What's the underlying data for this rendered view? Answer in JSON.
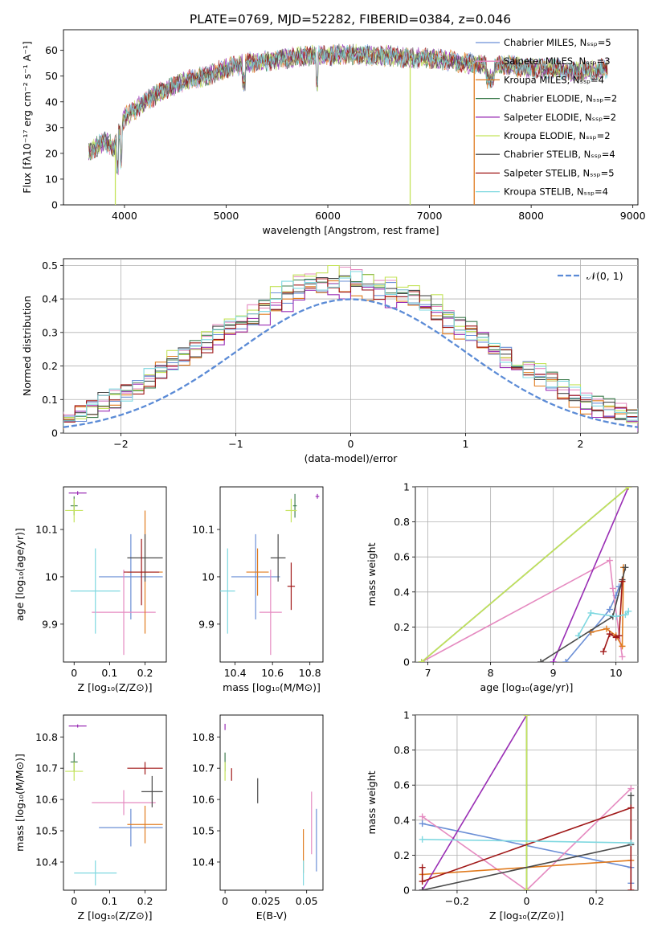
{
  "title": "PLATE=0769, MJD=52282, FIBERID=0384, z=0.046",
  "colors": [
    "#6b8fd6",
    "#e58ac0",
    "#e07b1f",
    "#3f7d4f",
    "#9a2fb5",
    "#c4e35a",
    "#4a4a4a",
    "#a01818",
    "#7fd8e0"
  ],
  "chart_data": [
    {
      "id": "spectrum",
      "type": "line",
      "xlabel": "wavelength [Angstrom, rest frame]",
      "ylabel": "Flux [fλ10⁻¹⁷ erg cm⁻² s⁻¹ A⁻¹]",
      "xlim": [
        3400,
        9050
      ],
      "ylim": [
        0,
        68
      ],
      "xticks": [
        4000,
        5000,
        6000,
        7000,
        8000,
        9000
      ],
      "yticks": [
        0,
        10,
        20,
        30,
        40,
        50,
        60
      ],
      "grid": false,
      "legend_position": "right",
      "series": [
        {
          "name": "Chabrier MILES, Nₛₛₚ=5"
        },
        {
          "name": "Salpeter MILES, Nₛₛₚ=3"
        },
        {
          "name": "Kroupa MILES, Nₛₛₚ=4"
        },
        {
          "name": "Chabrier ELODIE, Nₛₛₚ=2"
        },
        {
          "name": "Salpeter ELODIE, Nₛₛₚ=2"
        },
        {
          "name": "Kroupa ELODIE, Nₛₛₚ=2"
        },
        {
          "name": "Chabrier STELIB, Nₛₛₚ=4"
        },
        {
          "name": "Salpeter STELIB, Nₛₛₚ=5"
        },
        {
          "name": "Kroupa STELIB, Nₛₛₚ=4"
        }
      ],
      "continuum": {
        "x": [
          3650,
          3700,
          3800,
          3900,
          3950,
          4000,
          4100,
          4200,
          4400,
          4600,
          4800,
          5000,
          5200,
          5400,
          5600,
          5800,
          6000,
          6200,
          6400,
          6600,
          6800,
          7000,
          7200,
          7400,
          7600,
          7800,
          8000,
          8200,
          8400,
          8600,
          8750
        ],
        "y": [
          20,
          22,
          25,
          22,
          28,
          34,
          37,
          40,
          45,
          48,
          50,
          53,
          55,
          56,
          57,
          58,
          58,
          58.5,
          58,
          58,
          57,
          57,
          56,
          55,
          54,
          54,
          53,
          53,
          52,
          52,
          53
        ]
      },
      "dropouts": [
        {
          "x": 3910,
          "series": 5
        },
        {
          "x": 6810,
          "series": 5
        },
        {
          "x": 7440,
          "series": 2
        }
      ]
    },
    {
      "id": "residuals",
      "type": "histogram",
      "xlabel": "(data-model)/error",
      "ylabel": "Normed distribution",
      "xlim": [
        -2.5,
        2.5
      ],
      "ylim": [
        0,
        0.52
      ],
      "xticks": [
        -2,
        -1,
        0,
        1,
        2
      ],
      "yticks": [
        0.0,
        0.1,
        0.2,
        0.3,
        0.4,
        0.5
      ],
      "grid": true,
      "legend": [
        {
          "name": "𝒩(0, 1)",
          "style": "dashed"
        }
      ],
      "legend_position": "top-right",
      "bin_width": 0.1,
      "base": [
        0.02,
        0.025,
        0.03,
        0.035,
        0.04,
        0.05,
        0.06,
        0.07,
        0.09,
        0.1,
        0.12,
        0.14,
        0.16,
        0.19,
        0.21,
        0.23,
        0.25,
        0.27,
        0.29,
        0.31,
        0.33,
        0.35,
        0.37,
        0.39,
        0.41,
        0.42,
        0.43,
        0.44,
        0.45,
        0.45,
        0.44,
        0.44,
        0.43,
        0.42,
        0.41,
        0.4,
        0.38,
        0.36,
        0.34,
        0.32,
        0.3,
        0.28,
        0.26,
        0.23,
        0.21,
        0.19,
        0.17,
        0.15,
        0.13,
        0.11,
        0.09,
        0.08,
        0.07,
        0.06,
        0.05,
        0.04,
        0.035,
        0.03,
        0.025,
        0.02
      ]
    },
    {
      "id": "age-vs-Z",
      "type": "errorbar",
      "xlabel": "Z [log₁₀(Z/Z⊙)]",
      "ylabel": "age  [log₁₀(age/yr)]",
      "xlim": [
        -0.03,
        0.26
      ],
      "ylim": [
        9.82,
        10.19
      ],
      "xticks": [
        0.0,
        0.1,
        0.2
      ],
      "yticks": [
        9.9,
        10.0,
        10.1
      ],
      "grid": false,
      "points": [
        {
          "x": 0.16,
          "y": 10.0,
          "xerr": 0.09,
          "yerr": 0.09,
          "c": 0
        },
        {
          "x": 0.14,
          "y": 9.925,
          "xerr": 0.09,
          "yerr": 0.09,
          "c": 1
        },
        {
          "x": 0.2,
          "y": 10.01,
          "xerr": 0.05,
          "yerr": 0.13,
          "c": 2
        },
        {
          "x": 0.0,
          "y": 10.15,
          "xerr": 0.01,
          "yerr": 0.02,
          "c": 3
        },
        {
          "x": 0.01,
          "y": 10.177,
          "xerr": 0.025,
          "yerr": 0.004,
          "c": 4
        },
        {
          "x": 0.0,
          "y": 10.14,
          "xerr": 0.025,
          "yerr": 0.025,
          "c": 5
        },
        {
          "x": 0.2,
          "y": 10.04,
          "xerr": 0.05,
          "yerr": 0.05,
          "c": 6
        },
        {
          "x": 0.19,
          "y": 10.01,
          "xerr": 0.05,
          "yerr": 0.07,
          "c": 7
        },
        {
          "x": 0.06,
          "y": 9.97,
          "xerr": 0.07,
          "yerr": 0.09,
          "c": 8
        }
      ]
    },
    {
      "id": "age-vs-mass",
      "type": "errorbar",
      "xlabel": "mass [log₁₀(M/M⊙)]",
      "ylabel": "",
      "xlim": [
        10.32,
        10.87
      ],
      "ylim": [
        9.82,
        10.19
      ],
      "xticks": [
        10.4,
        10.6,
        10.8
      ],
      "yticks": [
        9.9,
        10.0,
        10.1
      ],
      "grid": false,
      "points": [
        {
          "x": 10.51,
          "y": 10.0,
          "xerr": 0.13,
          "yerr": 0.09,
          "c": 0
        },
        {
          "x": 10.59,
          "y": 9.925,
          "xerr": 0.06,
          "yerr": 0.09,
          "c": 1
        },
        {
          "x": 10.52,
          "y": 10.01,
          "xerr": 0.06,
          "yerr": 0.05,
          "c": 2
        },
        {
          "x": 10.72,
          "y": 10.15,
          "xerr": 0.01,
          "yerr": 0.025,
          "c": 3
        },
        {
          "x": 10.84,
          "y": 10.17,
          "xerr": 0.01,
          "yerr": 0.005,
          "c": 4
        },
        {
          "x": 10.7,
          "y": 10.14,
          "xerr": 0.03,
          "yerr": 0.025,
          "c": 5
        },
        {
          "x": 10.63,
          "y": 10.04,
          "xerr": 0.04,
          "yerr": 0.05,
          "c": 6
        },
        {
          "x": 10.7,
          "y": 9.98,
          "xerr": 0.02,
          "yerr": 0.05,
          "c": 7
        },
        {
          "x": 10.36,
          "y": 9.97,
          "xerr": 0.04,
          "yerr": 0.09,
          "c": 8
        }
      ]
    },
    {
      "id": "massweight-vs-age",
      "type": "line",
      "xlabel": "age  [log₁₀(age/yr)]",
      "ylabel": "mass weight",
      "xlim": [
        6.8,
        10.35
      ],
      "ylim": [
        0,
        1.0
      ],
      "xticks": [
        7,
        8,
        9,
        10
      ],
      "yticks": [
        0.0,
        0.2,
        0.4,
        0.6,
        0.8,
        1.0
      ],
      "grid": true,
      "series": [
        {
          "c": 0,
          "x": [
            9.2,
            9.6,
            9.9,
            10.0,
            10.05
          ],
          "y": [
            0.0,
            0.17,
            0.3,
            0.38,
            0.43
          ]
        },
        {
          "c": 1,
          "x": [
            6.9,
            9.9,
            9.95,
            10.1
          ],
          "y": [
            0.0,
            0.58,
            0.42,
            0.03
          ]
        },
        {
          "c": 2,
          "x": [
            9.6,
            9.85,
            10.0,
            10.1,
            10.12
          ],
          "y": [
            0.17,
            0.19,
            0.15,
            0.09,
            0.54
          ]
        },
        {
          "c": 3,
          "x": [
            6.9,
            10.2
          ],
          "y": [
            0.0,
            1.0
          ]
        },
        {
          "c": 4,
          "x": [
            9.0,
            10.2
          ],
          "y": [
            0.0,
            1.0
          ]
        },
        {
          "c": 5,
          "x": [
            6.9,
            10.2
          ],
          "y": [
            0.0,
            1.0
          ]
        },
        {
          "c": 6,
          "x": [
            8.8,
            9.95,
            10.1,
            10.15
          ],
          "y": [
            0.0,
            0.26,
            0.47,
            0.54
          ]
        },
        {
          "c": 7,
          "x": [
            9.8,
            9.9,
            10.0,
            10.05,
            10.1
          ],
          "y": [
            0.06,
            0.16,
            0.14,
            0.15,
            0.46
          ]
        },
        {
          "c": 8,
          "x": [
            9.4,
            9.6,
            10.0,
            10.15,
            10.2
          ],
          "y": [
            0.15,
            0.28,
            0.26,
            0.27,
            0.29
          ]
        }
      ]
    },
    {
      "id": "mass-vs-Z",
      "type": "errorbar",
      "xlabel": "Z [log₁₀(Z/Z⊙)]",
      "ylabel": "mass [log₁₀(M/M⊙)]",
      "xlim": [
        -0.03,
        0.26
      ],
      "ylim": [
        10.31,
        10.87
      ],
      "xticks": [
        0.0,
        0.1,
        0.2
      ],
      "yticks": [
        10.4,
        10.5,
        10.6,
        10.7,
        10.8
      ],
      "grid": false,
      "points": [
        {
          "x": 0.16,
          "y": 10.51,
          "xerr": 0.09,
          "yerr": 0.06,
          "c": 0
        },
        {
          "x": 0.14,
          "y": 10.59,
          "xerr": 0.09,
          "yerr": 0.04,
          "c": 1
        },
        {
          "x": 0.2,
          "y": 10.52,
          "xerr": 0.05,
          "yerr": 0.06,
          "c": 2
        },
        {
          "x": 0.0,
          "y": 10.72,
          "xerr": 0.01,
          "yerr": 0.03,
          "c": 3
        },
        {
          "x": 0.01,
          "y": 10.835,
          "xerr": 0.025,
          "yerr": 0.005,
          "c": 4
        },
        {
          "x": 0.0,
          "y": 10.69,
          "xerr": 0.025,
          "yerr": 0.03,
          "c": 5
        },
        {
          "x": 0.22,
          "y": 10.625,
          "xerr": 0.03,
          "yerr": 0.05,
          "c": 6
        },
        {
          "x": 0.2,
          "y": 10.7,
          "xerr": 0.05,
          "yerr": 0.02,
          "c": 7
        },
        {
          "x": 0.06,
          "y": 10.365,
          "xerr": 0.06,
          "yerr": 0.04,
          "c": 8
        }
      ]
    },
    {
      "id": "mass-vs-ebv",
      "type": "errorbar",
      "xlabel": "E(B-V)",
      "ylabel": "",
      "xlim": [
        -0.003,
        0.06
      ],
      "ylim": [
        10.31,
        10.87
      ],
      "xticks": [
        0.0,
        0.025,
        0.05
      ],
      "yticks": [
        10.4,
        10.5,
        10.6,
        10.7,
        10.8
      ],
      "grid": false,
      "points": [
        {
          "x": 0.056,
          "y": 10.47,
          "xerr": 0.0,
          "yerr": 0.1,
          "c": 0
        },
        {
          "x": 0.053,
          "y": 10.525,
          "xerr": 0.0,
          "yerr": 0.1,
          "c": 1
        },
        {
          "x": 0.048,
          "y": 10.435,
          "xerr": 0.0,
          "yerr": 0.07,
          "c": 2
        },
        {
          "x": 0.0,
          "y": 10.72,
          "xerr": 0.0,
          "yerr": 0.03,
          "c": 3
        },
        {
          "x": 0.0,
          "y": 10.832,
          "xerr": 0.0,
          "yerr": 0.01,
          "c": 4
        },
        {
          "x": 0.0,
          "y": 10.69,
          "xerr": 0.0,
          "yerr": 0.03,
          "c": 5
        },
        {
          "x": 0.02,
          "y": 10.628,
          "xerr": 0.0,
          "yerr": 0.04,
          "c": 6
        },
        {
          "x": 0.004,
          "y": 10.68,
          "xerr": 0.0,
          "yerr": 0.02,
          "c": 7
        },
        {
          "x": 0.048,
          "y": 10.365,
          "xerr": 0.0,
          "yerr": 0.04,
          "c": 8
        }
      ]
    },
    {
      "id": "massweight-vs-Z",
      "type": "line",
      "xlabel": "Z [log₁₀(Z/Z⊙)]",
      "ylabel": "mass weight",
      "xlim": [
        -0.32,
        0.32
      ],
      "ylim": [
        0,
        1.0
      ],
      "xticks": [
        -0.2,
        0.0,
        0.2
      ],
      "yticks": [
        0.0,
        0.2,
        0.4,
        0.6,
        0.8,
        1.0
      ],
      "grid": true,
      "series": [
        {
          "c": 0,
          "x": [
            -0.3,
            0.3,
            0.3
          ],
          "y": [
            0.38,
            0.13,
            0.04
          ]
        },
        {
          "c": 1,
          "x": [
            -0.3,
            0.0,
            0.3
          ],
          "y": [
            0.42,
            0.0,
            0.58
          ]
        },
        {
          "c": 2,
          "x": [
            -0.3,
            0.3
          ],
          "y": [
            0.09,
            0.17
          ]
        },
        {
          "c": 3,
          "x": [
            0.0,
            0.0
          ],
          "y": [
            0.0,
            1.0
          ]
        },
        {
          "c": 4,
          "x": [
            -0.3,
            0.0
          ],
          "y": [
            0.0,
            1.0
          ]
        },
        {
          "c": 5,
          "x": [
            0.0,
            0.0
          ],
          "y": [
            0.0,
            1.0
          ]
        },
        {
          "c": 6,
          "x": [
            -0.3,
            0.3,
            0.3
          ],
          "y": [
            0.0,
            0.26,
            0.54
          ]
        },
        {
          "c": 7,
          "x": [
            -0.3,
            -0.3,
            0.3,
            0.3
          ],
          "y": [
            0.13,
            0.05,
            0.47,
            0.0
          ]
        },
        {
          "c": 8,
          "x": [
            -0.3,
            0.3
          ],
          "y": [
            0.29,
            0.27
          ]
        }
      ]
    }
  ]
}
